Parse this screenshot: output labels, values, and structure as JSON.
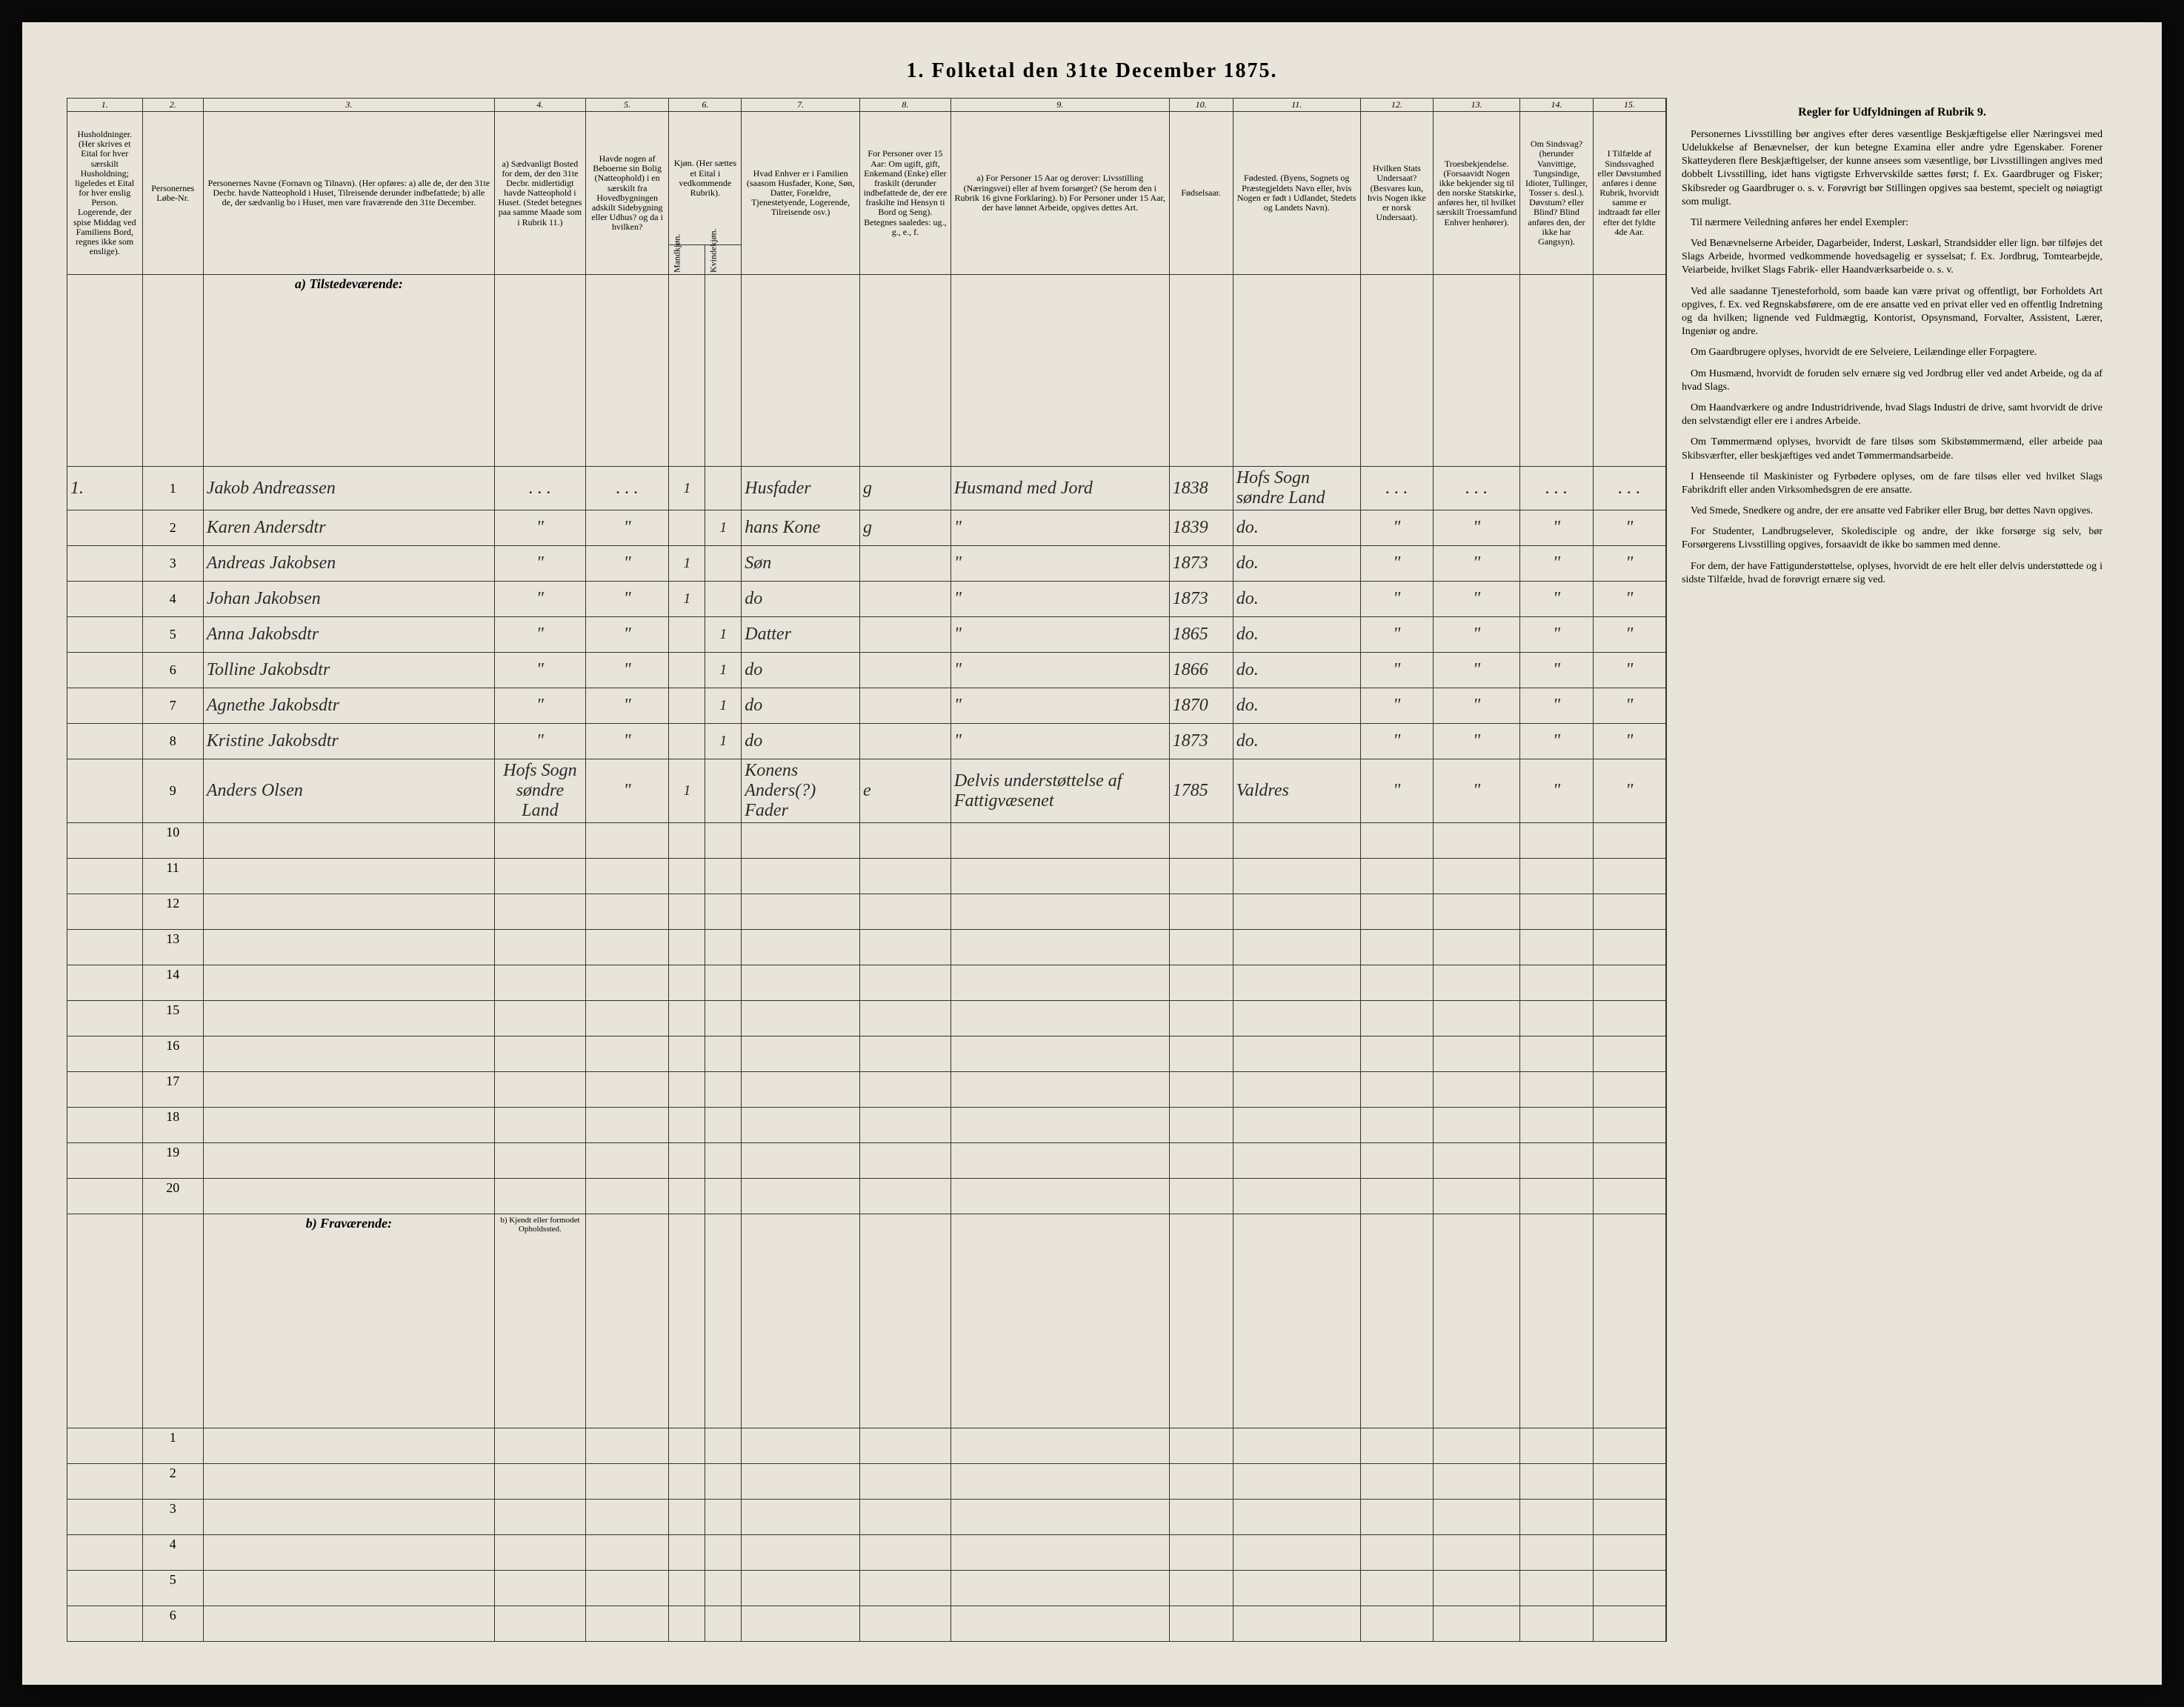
{
  "title": "1. Folketal den 31te December 1875.",
  "columns": {
    "1": {
      "num": "1.",
      "header": "Husholdninger. (Her skrives et Eital for hver særskilt Husholdning; ligeledes et Eital for hver enslig Person. Logerende, der spise Middag ved Familiens Bord, regnes ikke som enslige)."
    },
    "2": {
      "num": "2.",
      "header": "Personernes Løbe-Nr."
    },
    "3": {
      "num": "3.",
      "header": "Personernes Navne (Fornavn og Tilnavn). (Her opføres: a) alle de, der den 31te Decbr. havde Natteophold i Huset, Tilreisende derunder indbefattede; b) alle de, der sædvanlig bo i Huset, men vare fraværende den 31te December."
    },
    "4": {
      "num": "4.",
      "header": "a) Sædvanligt Bosted for dem, der den 31te Decbr. midlertidigt havde Natteophold i Huset. (Stedet betegnes paa samme Maade som i Rubrik 11.)"
    },
    "5": {
      "num": "5.",
      "header": "Havde nogen af Beboerne sin Bolig (Natteophold) i en særskilt fra Hovedbygningen adskilt Sidebygning eller Udhus? og da i hvilken?"
    },
    "6": {
      "num": "6.",
      "header": "Kjøn. (Her sættes et Eital i vedkommende Rubrik).",
      "sub_a": "Mandkjøn.",
      "sub_b": "Kvindekjøn."
    },
    "7": {
      "num": "7.",
      "header": "Hvad Enhver er i Familien (saasom Husfader, Kone, Søn, Datter, Forældre, Tjenestetyende, Logerende, Tilreisende osv.)"
    },
    "8": {
      "num": "8.",
      "header": "For Personer over 15 Aar: Om ugift, gift, Enkemand (Enke) eller fraskilt (derunder indbefattede de, der ere fraskilte ind Hensyn ti Bord og Seng). Betegnes saaledes: ug., g., e., f."
    },
    "9": {
      "num": "9.",
      "header": "a) For Personer 15 Aar og derover: Livsstilling (Næringsvei) eller af hvem forsørget? (Se herom den i Rubrik 16 givne Forklaring). b) For Personer under 15 Aar, der have lønnet Arbeide, opgives dettes Art."
    },
    "10": {
      "num": "10.",
      "header": "Fødselsaar."
    },
    "11": {
      "num": "11.",
      "header": "Fødested. (Byens, Sognets og Præstegjeldets Navn eller, hvis Nogen er født i Udlandet, Stedets og Landets Navn)."
    },
    "12": {
      "num": "12.",
      "header": "Hvilken Stats Undersaat? (Besvares kun, hvis Nogen ikke er norsk Undersaat)."
    },
    "13": {
      "num": "13.",
      "header": "Troesbekjendelse. (Forsaavidt Nogen ikke bekjender sig til den norske Statskirke, anføres her, til hvilket særskilt Troessamfund Enhver henhører)."
    },
    "14": {
      "num": "14.",
      "header": "Om Sindsvag? (herunder Vanvittige, Tungsindige, Idioter, Tullinger, Tosser s. desl.). Døvstum? eller Blind? Blind anføres den, der ikke har Gangsyn)."
    },
    "15": {
      "num": "15.",
      "header": "I Tilfælde af Sindssvaghed eller Døvstumhed anføres i denne Rubrik, hvorvidt samme er indtraadt før eller efter det fyldte 4de Aar."
    }
  },
  "section_a": "a) Tilstedeværende:",
  "section_b": "b) Fraværende:",
  "section_b_col4": "b) Kjendt eller formodet Opholdssted.",
  "rows": [
    {
      "n": "1",
      "household": "1.",
      "name": "Jakob Andreassen",
      "c4": ". . .",
      "c5": ". . .",
      "male": "1",
      "female": "",
      "relation": "Husfader",
      "marital": "g",
      "occupation": "Husmand med Jord",
      "year": "1838",
      "birthplace": "Hofs Sogn søndre Land",
      "c12": ". . .",
      "c13": ". . .",
      "c14": ". . .",
      "c15": ". . ."
    },
    {
      "n": "2",
      "household": "",
      "name": "Karen Andersdtr",
      "c4": "\"",
      "c5": "\"",
      "male": "",
      "female": "1",
      "relation": "hans Kone",
      "marital": "g",
      "occupation": "\"",
      "year": "1839",
      "birthplace": "do.",
      "c12": "\"",
      "c13": "\"",
      "c14": "\"",
      "c15": "\""
    },
    {
      "n": "3",
      "household": "",
      "name": "Andreas Jakobsen",
      "c4": "\"",
      "c5": "\"",
      "male": "1",
      "female": "",
      "relation": "Søn",
      "marital": "",
      "occupation": "\"",
      "year": "1873",
      "birthplace": "do.",
      "c12": "\"",
      "c13": "\"",
      "c14": "\"",
      "c15": "\""
    },
    {
      "n": "4",
      "household": "",
      "name": "Johan Jakobsen",
      "c4": "\"",
      "c5": "\"",
      "male": "1",
      "female": "",
      "relation": "do",
      "marital": "",
      "occupation": "\"",
      "year": "1873",
      "birthplace": "do.",
      "c12": "\"",
      "c13": "\"",
      "c14": "\"",
      "c15": "\""
    },
    {
      "n": "5",
      "household": "",
      "name": "Anna Jakobsdtr",
      "c4": "\"",
      "c5": "\"",
      "male": "",
      "female": "1",
      "relation": "Datter",
      "marital": "",
      "occupation": "\"",
      "year": "1865",
      "birthplace": "do.",
      "c12": "\"",
      "c13": "\"",
      "c14": "\"",
      "c15": "\""
    },
    {
      "n": "6",
      "household": "",
      "name": "Tolline Jakobsdtr",
      "c4": "\"",
      "c5": "\"",
      "male": "",
      "female": "1",
      "relation": "do",
      "marital": "",
      "occupation": "\"",
      "year": "1866",
      "birthplace": "do.",
      "c12": "\"",
      "c13": "\"",
      "c14": "\"",
      "c15": "\""
    },
    {
      "n": "7",
      "household": "",
      "name": "Agnethe Jakobsdtr",
      "c4": "\"",
      "c5": "\"",
      "male": "",
      "female": "1",
      "relation": "do",
      "marital": "",
      "occupation": "\"",
      "year": "1870",
      "birthplace": "do.",
      "c12": "\"",
      "c13": "\"",
      "c14": "\"",
      "c15": "\""
    },
    {
      "n": "8",
      "household": "",
      "name": "Kristine Jakobsdtr",
      "c4": "\"",
      "c5": "\"",
      "male": "",
      "female": "1",
      "relation": "do",
      "marital": "",
      "occupation": "\"",
      "year": "1873",
      "birthplace": "do.",
      "c12": "\"",
      "c13": "\"",
      "c14": "\"",
      "c15": "\""
    },
    {
      "n": "9",
      "household": "",
      "name": "Anders Olsen",
      "c4": "Hofs Sogn søndre Land",
      "c5": "\"",
      "male": "1",
      "female": "",
      "relation": "Konens Anders(?) Fader",
      "marital": "e",
      "occupation": "Delvis understøttelse af Fattigvæsenet",
      "year": "1785",
      "birthplace": "Valdres",
      "c12": "\"",
      "c13": "\"",
      "c14": "\"",
      "c15": "\""
    }
  ],
  "empty_rows": [
    "10",
    "11",
    "12",
    "13",
    "14",
    "15",
    "16",
    "17",
    "18",
    "19",
    "20"
  ],
  "absent_rows": [
    "1",
    "2",
    "3",
    "4",
    "5",
    "6"
  ],
  "instructions": {
    "header": "Regler for Udfyldningen af Rubrik 9.",
    "paragraphs": [
      "Personernes Livsstilling bør angives efter deres væsentlige Beskjæftigelse eller Næringsvei med Udelukkelse af Benævnelser, der kun betegne Examina eller andre ydre Egenskaber. Forener Skatteyderen flere Beskjæftigelser, der kunne ansees som væsentlige, bør Livsstillingen angives med dobbelt Livsstilling, idet hans vigtigste Erhvervskilde sættes først; f. Ex. Gaardbruger og Fisker; Skibsreder og Gaardbruger o. s. v. Forøvrigt bør Stillingen opgives saa bestemt, specielt og nøiagtigt som muligt.",
      "Til nærmere Veiledning anføres her endel Exempler:",
      "Ved Benævnelserne Arbeider, Dagarbeider, Inderst, Løskarl, Strandsidder eller lign. bør tilføjes det Slags Arbeide, hvormed vedkommende hovedsagelig er sysselsat; f. Ex. Jordbrug, Tomtearbejde, Veiarbeide, hvilket Slags Fabrik- eller Haandværksarbeide o. s. v.",
      "Ved alle saadanne Tjenesteforhold, som baade kan være privat og offentligt, bør Forholdets Art opgives, f. Ex. ved Regnskabsførere, om de ere ansatte ved en privat eller ved en offentlig Indretning og da hvilken; lignende ved Fuldmægtig, Kontorist, Opsynsmand, Forvalter, Assistent, Lærer, Ingeniør og andre.",
      "Om Gaardbrugere oplyses, hvorvidt de ere Selveiere, Leilændinge eller Forpagtere.",
      "Om Husmænd, hvorvidt de foruden selv ernære sig ved Jordbrug eller ved andet Arbeide, og da af hvad Slags.",
      "Om Haandværkere og andre Industridrivende, hvad Slags Industri de drive, samt hvorvidt de drive den selvstændigt eller ere i andres Arbeide.",
      "Om Tømmermænd oplyses, hvorvidt de fare tilsøs som Skibstømmermænd, eller arbeide paa Skibsværfter, eller beskjæftiges ved andet Tømmermandsarbeide.",
      "I Henseende til Maskinister og Fyrbødere oplyses, om de fare tilsøs eller ved hvilket Slags Fabrikdrift eller anden Virksomhedsgren de ere ansatte.",
      "Ved Smede, Snedkere og andre, der ere ansatte ved Fabriker eller Brug, bør dettes Navn opgives.",
      "For Studenter, Landbrugselever, Skoledisciple og andre, der ikke forsørge sig selv, bør Forsørgerens Livsstilling opgives, forsaavidt de ikke bo sammen med denne.",
      "For dem, der have Fattigunderstøttelse, oplyses, hvorvidt de ere helt eller delvis understøttede og i sidste Tilfælde, hvad de forøvrigt ernære sig ved."
    ]
  }
}
